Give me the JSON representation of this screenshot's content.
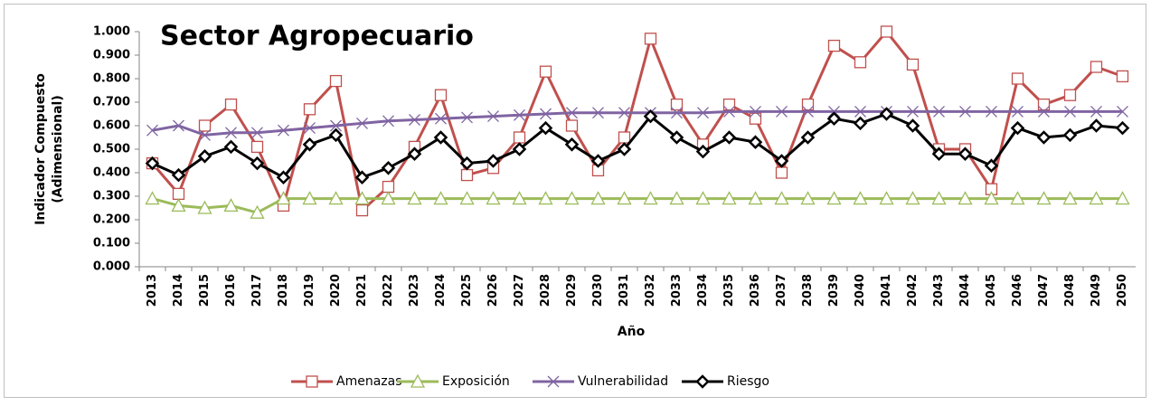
{
  "chart_data": {
    "type": "line",
    "title": "Sector Agropecuario",
    "ylabel": [
      "Indicador Compuesto",
      "(Adimensional)"
    ],
    "xlabel": "Año",
    "categories": [
      "2013",
      "2014",
      "2015",
      "2016",
      "2017",
      "2018",
      "2019",
      "2020",
      "2021",
      "2022",
      "2023",
      "2024",
      "2025",
      "2026",
      "2027",
      "2028",
      "2029",
      "2030",
      "2031",
      "2032",
      "2033",
      "2034",
      "2035",
      "2036",
      "2037",
      "2038",
      "2039",
      "2040",
      "2041",
      "2042",
      "2043",
      "2044",
      "2045",
      "2046",
      "2047",
      "2048",
      "2049",
      "2050"
    ],
    "series": [
      {
        "name": "Amenazas",
        "color": "#c0504d",
        "marker": "square",
        "values": [
          0.44,
          0.31,
          0.6,
          0.69,
          0.51,
          0.26,
          0.67,
          0.79,
          0.24,
          0.34,
          0.51,
          0.73,
          0.39,
          0.42,
          0.55,
          0.83,
          0.6,
          0.41,
          0.55,
          0.97,
          0.69,
          0.52,
          0.69,
          0.63,
          0.4,
          0.69,
          0.94,
          0.87,
          1.0,
          0.86,
          0.5,
          0.5,
          0.33,
          0.8,
          0.69,
          0.73,
          0.85,
          0.81
        ]
      },
      {
        "name": "Exposición",
        "color": "#9bbb59",
        "marker": "triangle",
        "values": [
          0.29,
          0.26,
          0.25,
          0.26,
          0.23,
          0.29,
          0.29,
          0.29,
          0.29,
          0.29,
          0.29,
          0.29,
          0.29,
          0.29,
          0.29,
          0.29,
          0.29,
          0.29,
          0.29,
          0.29,
          0.29,
          0.29,
          0.29,
          0.29,
          0.29,
          0.29,
          0.29,
          0.29,
          0.29,
          0.29,
          0.29,
          0.29,
          0.29,
          0.29,
          0.29,
          0.29,
          0.29,
          0.29
        ]
      },
      {
        "name": "Vulnerabilidad",
        "color": "#8064a2",
        "marker": "x",
        "values": [
          0.58,
          0.6,
          0.56,
          0.57,
          0.57,
          0.58,
          0.59,
          0.6,
          0.61,
          0.62,
          0.625,
          0.63,
          0.635,
          0.64,
          0.645,
          0.65,
          0.655,
          0.655,
          0.655,
          0.655,
          0.655,
          0.655,
          0.66,
          0.66,
          0.66,
          0.66,
          0.66,
          0.66,
          0.66,
          0.66,
          0.66,
          0.66,
          0.66,
          0.66,
          0.66,
          0.66,
          0.66,
          0.66
        ]
      },
      {
        "name": "Riesgo",
        "color": "#000000",
        "marker": "diamond",
        "values": [
          0.44,
          0.39,
          0.47,
          0.51,
          0.44,
          0.38,
          0.52,
          0.56,
          0.38,
          0.42,
          0.48,
          0.55,
          0.44,
          0.45,
          0.5,
          0.59,
          0.52,
          0.45,
          0.5,
          0.64,
          0.55,
          0.49,
          0.55,
          0.53,
          0.45,
          0.55,
          0.63,
          0.61,
          0.65,
          0.6,
          0.48,
          0.48,
          0.43,
          0.59,
          0.55,
          0.56,
          0.6,
          0.59
        ]
      }
    ],
    "ylim": [
      0,
      1
    ],
    "yticks": [
      {
        "value": 0,
        "label": "0.000"
      },
      {
        "value": 0.1,
        "label": "0.100"
      },
      {
        "value": 0.2,
        "label": "0.200"
      },
      {
        "value": 0.3,
        "label": "0.300"
      },
      {
        "value": 0.4,
        "label": "0.400"
      },
      {
        "value": 0.5,
        "label": "0.500"
      },
      {
        "value": 0.6,
        "label": "0.600"
      },
      {
        "value": 0.7,
        "label": "0.700"
      },
      {
        "value": 0.8,
        "label": "0.800"
      },
      {
        "value": 0.9,
        "label": "0.900"
      },
      {
        "value": 1,
        "label": "1.000"
      }
    ],
    "grid": false,
    "legend": "bottom"
  }
}
